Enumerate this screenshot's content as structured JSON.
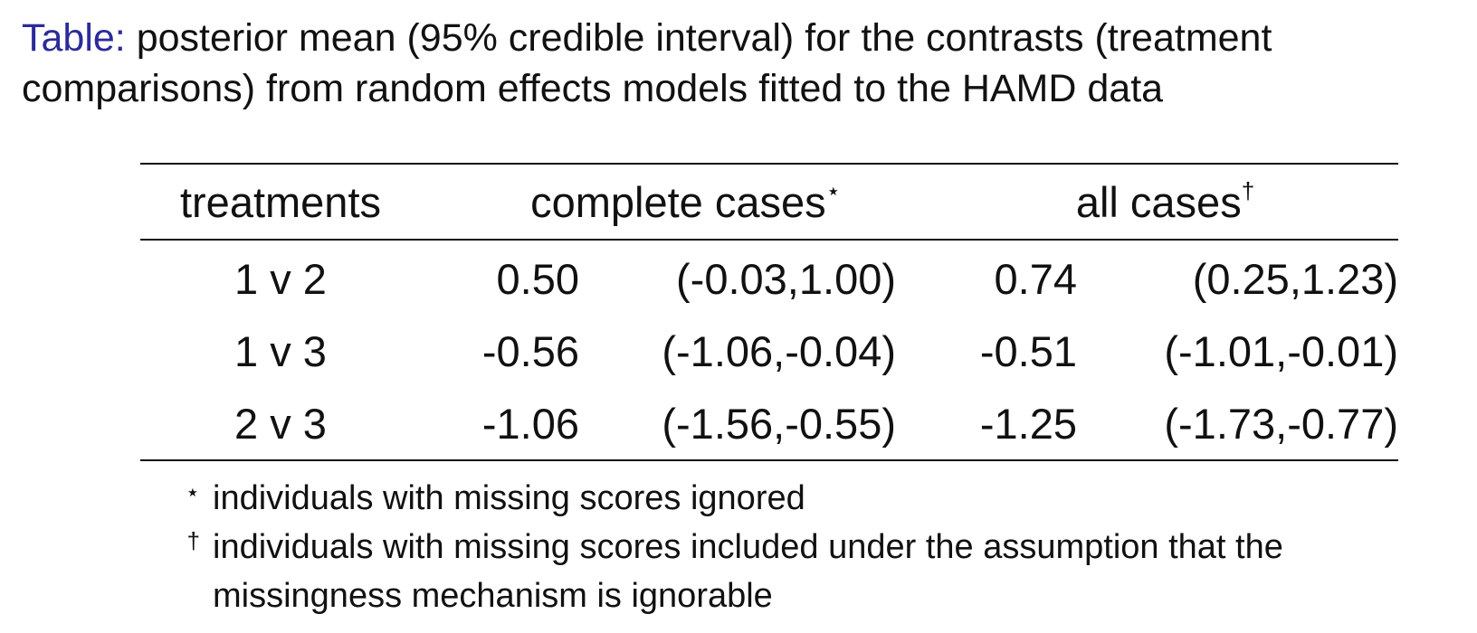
{
  "caption": {
    "label": "Table:",
    "text": "posterior mean (95% credible interval) for the contrasts (treatment comparisons) from random effects models fitted to the HAMD data"
  },
  "table": {
    "headers": {
      "treatments": "treatments",
      "complete_cases": "complete cases",
      "complete_cases_mark": "⋆",
      "all_cases": "all cases",
      "all_cases_mark": "†"
    },
    "rows": [
      {
        "treatments": "1 v 2",
        "complete_mean": "0.50",
        "complete_ci": "(-0.03,1.00)",
        "all_mean": "0.74",
        "all_ci": "(0.25,1.23)"
      },
      {
        "treatments": "1 v 3",
        "complete_mean": "-0.56",
        "complete_ci": "(-1.06,-0.04)",
        "all_mean": "-0.51",
        "all_ci": "(-1.01,-0.01)"
      },
      {
        "treatments": "2 v 3",
        "complete_mean": "-1.06",
        "complete_ci": "(-1.56,-0.55)",
        "all_mean": "-1.25",
        "all_ci": "(-1.73,-0.77)"
      }
    ]
  },
  "footnotes": [
    {
      "symbol": "⋆",
      "text": "individuals with missing scores ignored"
    },
    {
      "symbol": "†",
      "text": "individuals with missing scores included under the assumption that the missingness mechanism is ignorable"
    }
  ],
  "colors": {
    "caption_label": "#2b2b9a",
    "text": "#111111"
  }
}
